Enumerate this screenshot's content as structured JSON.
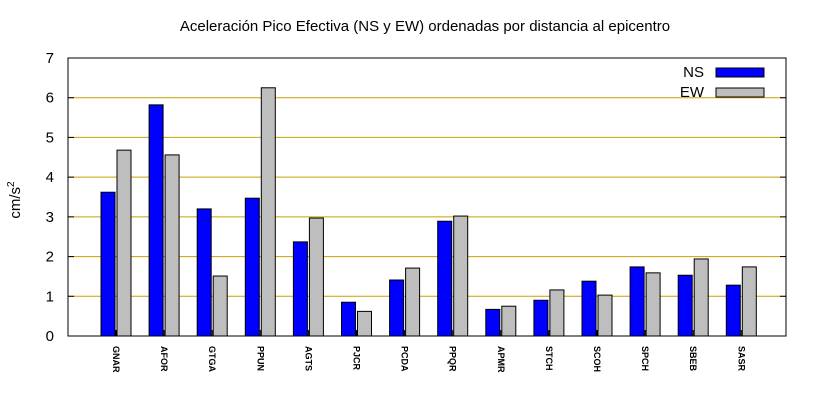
{
  "chart_data": {
    "type": "bar",
    "title": "Aceleración Pico Efectiva (NS y EW) ordenadas por distancia al epicentro",
    "xlabel": "",
    "ylabel": "cm/s",
    "ylabel_superscript": "2",
    "ylim": [
      0,
      7
    ],
    "yticks": [
      "0",
      "1",
      "2",
      "3",
      "4",
      "5",
      "6",
      "7"
    ],
    "grid": true,
    "grid_color": "#c8a000",
    "legend_position": "top-right",
    "categories": [
      "GNAR",
      "AFOR",
      "GTGA",
      "PPUN",
      "AGTS",
      "PJCR",
      "PCDA",
      "PPQR",
      "APMR",
      "STCH",
      "SCOH",
      "SPCH",
      "SBEB",
      "SASR"
    ],
    "series": [
      {
        "name": "NS",
        "color": "#0000ff",
        "values": [
          3.62,
          5.82,
          3.2,
          3.47,
          2.37,
          0.85,
          1.41,
          2.89,
          0.67,
          0.9,
          1.38,
          1.74,
          1.53,
          1.28
        ]
      },
      {
        "name": "EW",
        "color": "#bebebe",
        "values": [
          4.68,
          4.56,
          1.51,
          6.25,
          2.97,
          0.62,
          1.71,
          3.02,
          0.75,
          1.16,
          1.03,
          1.59,
          1.94,
          1.74
        ]
      }
    ]
  }
}
